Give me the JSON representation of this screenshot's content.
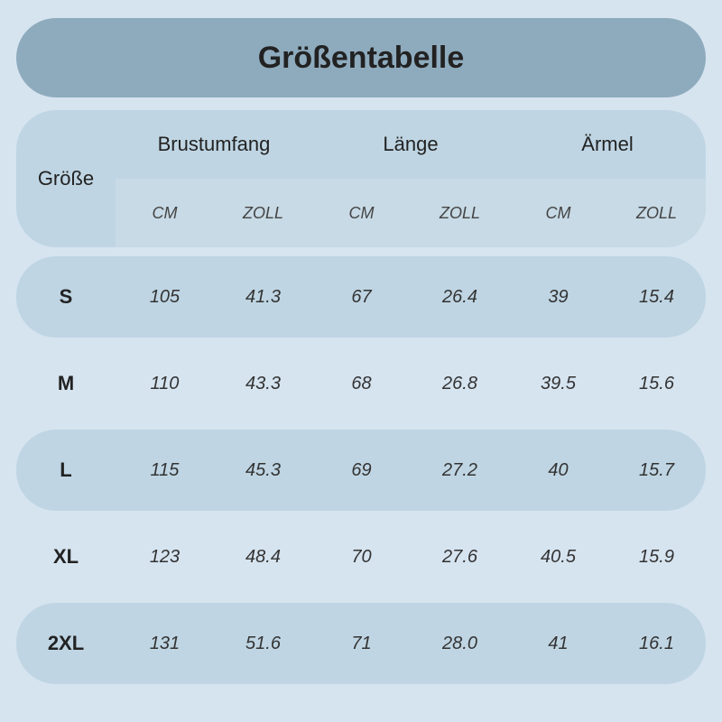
{
  "title": "Größentabelle",
  "type": "table",
  "background_color": "#d6e4f0",
  "header_bg": "#bfd5e3",
  "unit_bg": "#c7dae6",
  "title_bg": "#8eabbd",
  "stripe_bg": "#bfd5e3",
  "text_color": "#333333",
  "title_fontsize": 34,
  "header_fontsize": 22,
  "unit_fontsize": 18,
  "cell_fontsize": 20,
  "size_fontsize": 22,
  "border_radius": 44,
  "columns": {
    "size_label": "Größe",
    "groups": [
      "Brustumfang",
      "Länge",
      "Ärmel"
    ],
    "units": [
      "CM",
      "ZOLL",
      "CM",
      "ZOLL",
      "CM",
      "ZOLL"
    ]
  },
  "rows": [
    {
      "size": "S",
      "values": [
        "105",
        "41.3",
        "67",
        "26.4",
        "39",
        "15.4"
      ]
    },
    {
      "size": "M",
      "values": [
        "110",
        "43.3",
        "68",
        "26.8",
        "39.5",
        "15.6"
      ]
    },
    {
      "size": "L",
      "values": [
        "115",
        "45.3",
        "69",
        "27.2",
        "40",
        "15.7"
      ]
    },
    {
      "size": "XL",
      "values": [
        "123",
        "48.4",
        "70",
        "27.6",
        "40.5",
        "15.9"
      ]
    },
    {
      "size": "2XL",
      "values": [
        "131",
        "51.6",
        "71",
        "28.0",
        "41",
        "16.1"
      ]
    }
  ]
}
